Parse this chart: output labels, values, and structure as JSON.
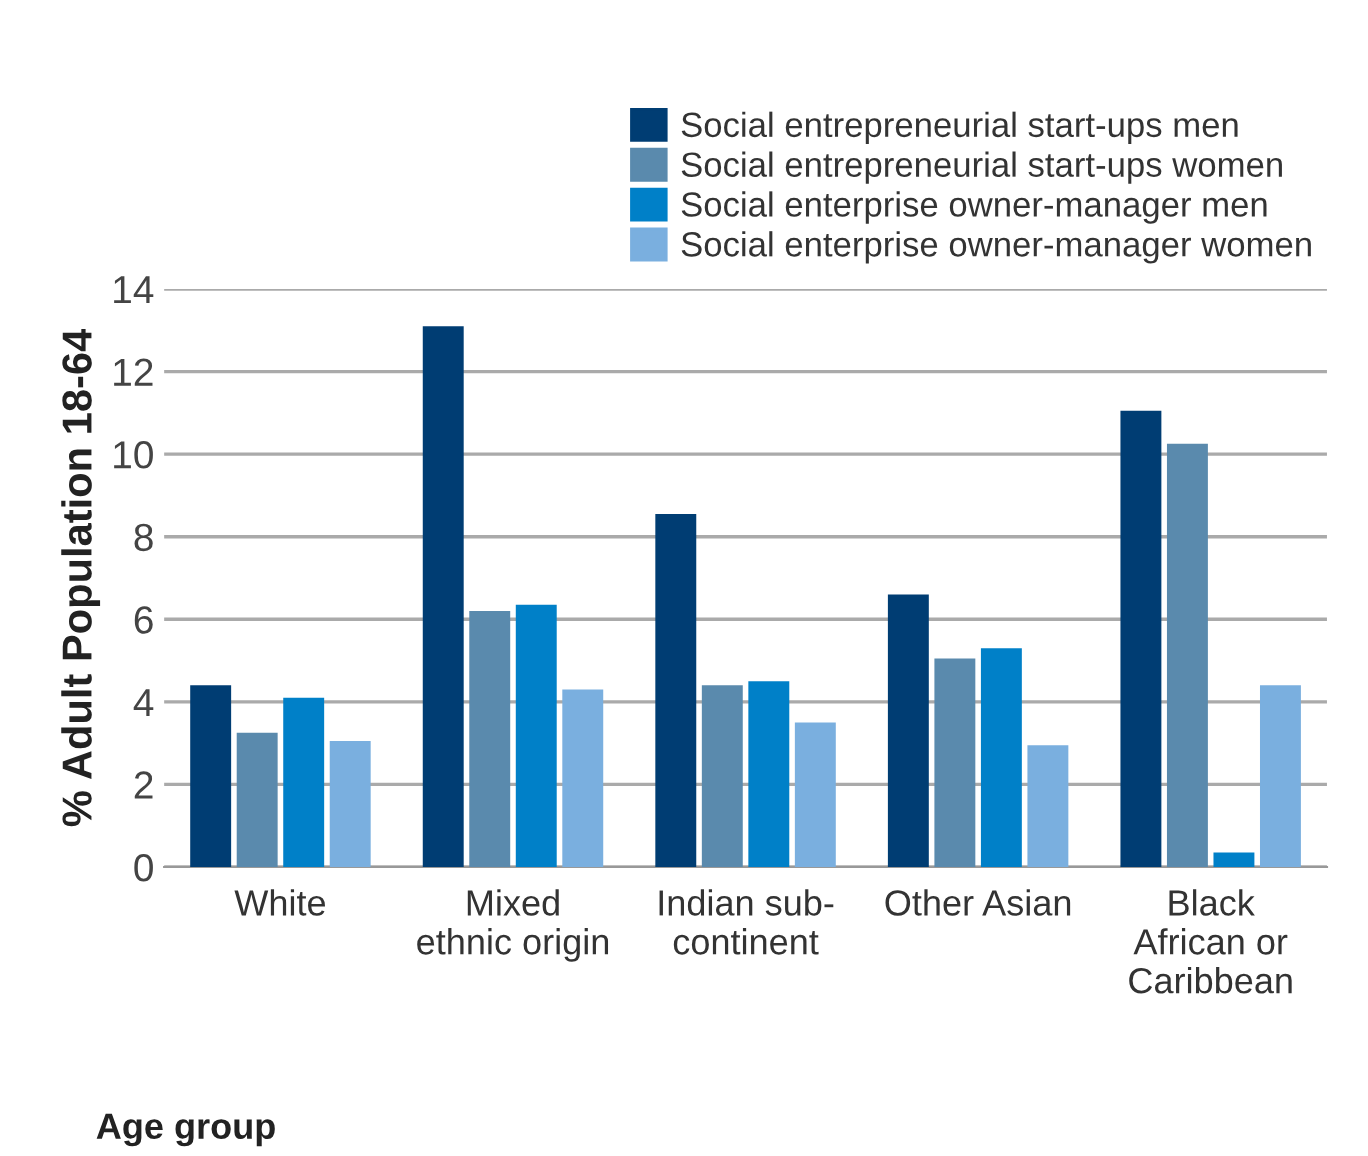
{
  "chart_data": {
    "type": "bar",
    "ylabel": "% Adult Population 18-64",
    "categories": [
      "White",
      "Mixed\nethnic origin",
      "Indian sub-\ncontinent",
      "Other Asian",
      "Black\nAfrican or\nCaribbean"
    ],
    "series": [
      {
        "name": "Social entrepreneurial start-ups men",
        "color": "#003d73",
        "values": [
          4.4,
          13.1,
          8.55,
          6.6,
          11.05
        ]
      },
      {
        "name": "Social entrepreneurial start-ups women",
        "color": "#5a8aad",
        "values": [
          3.25,
          6.2,
          4.4,
          5.05,
          10.25
        ]
      },
      {
        "name": "Social enterprise owner-manager men",
        "color": "#0080c8",
        "values": [
          4.1,
          6.35,
          4.5,
          5.3,
          0.35
        ]
      },
      {
        "name": "Social enterprise owner-manager women",
        "color": "#7aafdf",
        "values": [
          3.05,
          4.3,
          3.5,
          2.95,
          4.4
        ]
      }
    ],
    "ylim": [
      0,
      14
    ],
    "yticks": [
      0,
      2,
      4,
      6,
      8,
      10,
      12,
      14
    ],
    "grid": "y",
    "legend": "top right",
    "annotations": [
      "Age group"
    ]
  }
}
